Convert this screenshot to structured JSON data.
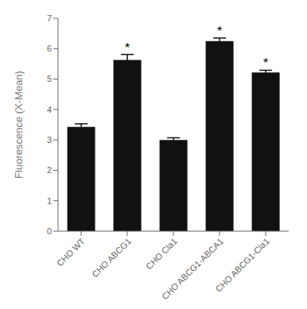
{
  "chart_data": {
    "type": "bar",
    "categories": [
      "CHO WT",
      "CHO ABCG1",
      "CHO Cla1",
      "CHO ABCG1-ABCA1",
      "CHO ABCG1-Cla1"
    ],
    "values": [
      3.43,
      5.63,
      3.0,
      6.25,
      5.22
    ],
    "errors": [
      0.1,
      0.18,
      0.07,
      0.1,
      0.07
    ],
    "color": "#111111",
    "ylabel": "Fluorescence (X-Mean)",
    "ylim": [
      0,
      7
    ],
    "yticks": [
      0,
      1,
      2,
      3,
      4,
      5,
      6,
      7
    ],
    "grid": false,
    "annotations": [
      {
        "category": "CHO ABCG1",
        "text": "*"
      },
      {
        "category": "CHO ABCG1-ABCA1",
        "text": "*"
      },
      {
        "category": "CHO ABCG1-Cla1",
        "text": "*"
      }
    ]
  }
}
